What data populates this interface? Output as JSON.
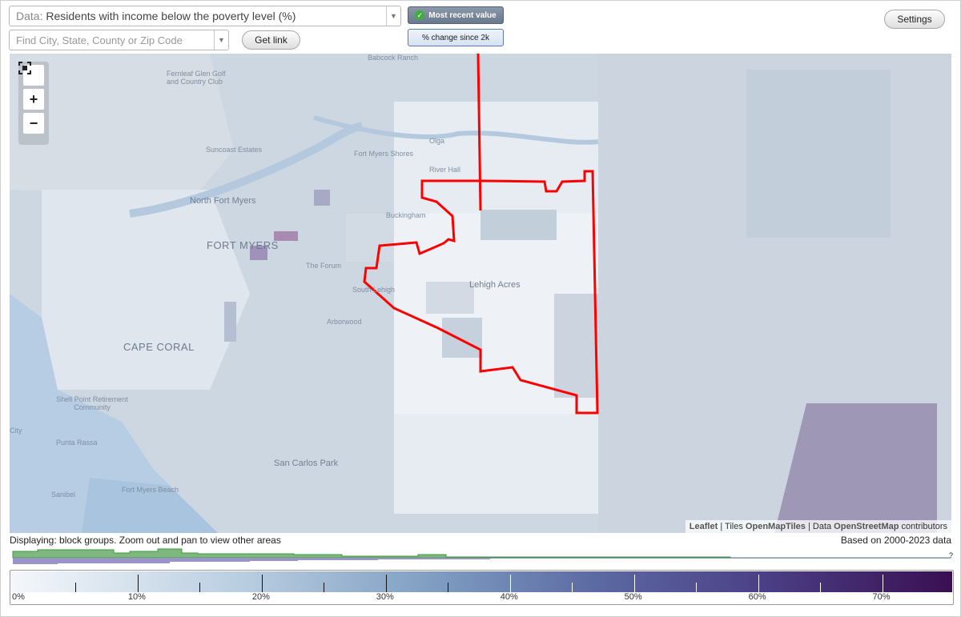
{
  "data_select": {
    "prefix": "Data:",
    "value": "Residents with income below the poverty level (%)"
  },
  "search": {
    "placeholder": "Find City, State, County or Zip Code"
  },
  "buttons": {
    "get_link": "Get link",
    "settings": "Settings"
  },
  "toggles": {
    "most_recent": "Most recent value",
    "percent_change": "% change since 2k"
  },
  "map": {
    "labels": {
      "babcock_ranch": "Babcock Ranch",
      "fernleaf": "Fernleaf Glen Golf and Country Club",
      "suncoast": "Suncoast Estates",
      "fort_myers_shores": "Fort Myers Shores",
      "olga": "Olga",
      "river_hall": "River Hall",
      "north_fort_myers": "North Fort Myers",
      "buckingham": "Buckingham",
      "fort_myers": "FORT MYERS",
      "the_forum": "The Forum",
      "lehigh_acres": "Lehigh Acres",
      "south_lehigh": "South Lehigh",
      "arborwood": "Arborwood",
      "cape_coral": "CAPE CORAL",
      "shell_point": "Shell Point Retirement Community",
      "city": "City",
      "punta_rassa": "Punta Rassa",
      "san_carlos_park": "San Carlos Park",
      "fort_myers_beach": "Fort Myers Beach",
      "sanibel": "Sanibel"
    },
    "zoom_icons": [
      "fullscreen-icon",
      "zoom-in-icon",
      "zoom-out-icon"
    ],
    "highlight_color": "#ff0000"
  },
  "attribution": {
    "leaflet": "Leaflet",
    "tiles_prefix": " | Tiles ",
    "tiles": "OpenMapTiles",
    "data_prefix": " | Data ",
    "osm": "OpenStreetMap",
    "suffix": " contributors"
  },
  "status": {
    "left": "Displaying: block groups. Zoom out and pan to view other areas",
    "right": "Based on 2000-2023 data",
    "question": "?"
  },
  "legend": {
    "labels": [
      "0%",
      "10%",
      "20%",
      "30%",
      "40%",
      "50%",
      "60%",
      "70%"
    ],
    "range": [
      0,
      75
    ],
    "colors": {
      "low": "#f4f7fb",
      "high": "#3a0f52"
    }
  }
}
